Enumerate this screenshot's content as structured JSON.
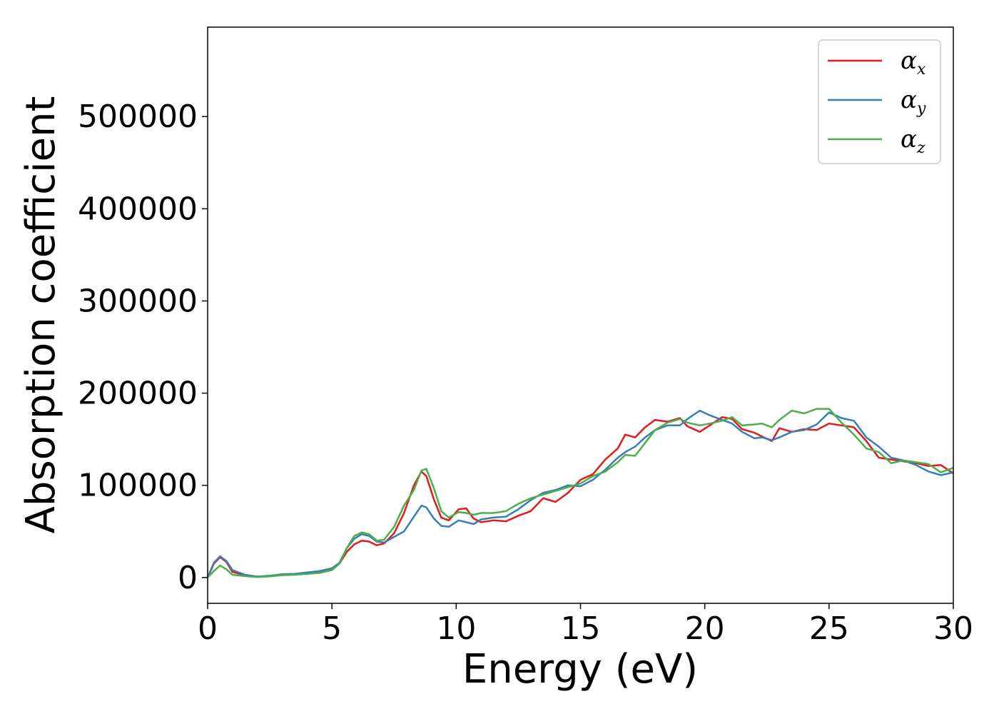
{
  "chart_data": {
    "type": "line",
    "title": "",
    "xlabel": "Energy (eV)",
    "ylabel": "Absorption coefficient",
    "xlim": [
      0,
      30
    ],
    "ylim": [
      -28000,
      597000
    ],
    "xticks": [
      0,
      5,
      10,
      15,
      20,
      25,
      30
    ],
    "yticks": [
      0,
      100000,
      200000,
      300000,
      400000,
      500000
    ],
    "grid": false,
    "legend_position": "top-right",
    "series": [
      {
        "name_symbol": "α",
        "name_sub": "x",
        "color": "#e41a1c",
        "points": [
          [
            0,
            0
          ],
          [
            0.25,
            15000
          ],
          [
            0.5,
            22000
          ],
          [
            0.75,
            17000
          ],
          [
            1,
            6000
          ],
          [
            1.5,
            2500
          ],
          [
            2,
            800
          ],
          [
            2.5,
            1500
          ],
          [
            3,
            3000
          ],
          [
            3.5,
            3500
          ],
          [
            4,
            5000
          ],
          [
            4.5,
            6500
          ],
          [
            5,
            10000
          ],
          [
            5.3,
            15000
          ],
          [
            5.6,
            28000
          ],
          [
            5.9,
            36000
          ],
          [
            6.2,
            40000
          ],
          [
            6.5,
            39000
          ],
          [
            6.8,
            35000
          ],
          [
            7.1,
            37000
          ],
          [
            7.5,
            48000
          ],
          [
            7.9,
            70000
          ],
          [
            8.3,
            100000
          ],
          [
            8.6,
            115000
          ],
          [
            8.8,
            110000
          ],
          [
            9.1,
            85000
          ],
          [
            9.4,
            65000
          ],
          [
            9.7,
            62000
          ],
          [
            10.1,
            74000
          ],
          [
            10.4,
            75000
          ],
          [
            10.7,
            64000
          ],
          [
            11,
            60000
          ],
          [
            11.5,
            62000
          ],
          [
            12,
            61000
          ],
          [
            12.5,
            67000
          ],
          [
            13,
            72000
          ],
          [
            13.5,
            86000
          ],
          [
            14,
            82000
          ],
          [
            14.5,
            92000
          ],
          [
            15,
            106000
          ],
          [
            15.5,
            112000
          ],
          [
            16,
            128000
          ],
          [
            16.5,
            140000
          ],
          [
            16.8,
            155000
          ],
          [
            17.2,
            152000
          ],
          [
            17.6,
            163000
          ],
          [
            18,
            171000
          ],
          [
            18.5,
            169000
          ],
          [
            19,
            173000
          ],
          [
            19.3,
            164000
          ],
          [
            19.8,
            158000
          ],
          [
            20.2,
            165000
          ],
          [
            20.7,
            174000
          ],
          [
            21.1,
            172000
          ],
          [
            21.5,
            161000
          ],
          [
            22,
            157000
          ],
          [
            22.3,
            153000
          ],
          [
            22.7,
            148000
          ],
          [
            23,
            162000
          ],
          [
            23.5,
            158000
          ],
          [
            24,
            161000
          ],
          [
            24.5,
            160000
          ],
          [
            25,
            167000
          ],
          [
            25.5,
            165000
          ],
          [
            26,
            163000
          ],
          [
            26.5,
            148000
          ],
          [
            27,
            130000
          ],
          [
            27.5,
            128000
          ],
          [
            28,
            126000
          ],
          [
            28.5,
            124000
          ],
          [
            29,
            121000
          ],
          [
            29.5,
            122000
          ],
          [
            30,
            113000
          ]
        ]
      },
      {
        "name_symbol": "α",
        "name_sub": "y",
        "color": "#377eb8",
        "points": [
          [
            0,
            0
          ],
          [
            0.25,
            16000
          ],
          [
            0.5,
            23000
          ],
          [
            0.75,
            18000
          ],
          [
            1,
            8000
          ],
          [
            1.5,
            3000
          ],
          [
            2,
            1000
          ],
          [
            2.5,
            2000
          ],
          [
            3,
            3500
          ],
          [
            3.5,
            4000
          ],
          [
            4,
            5500
          ],
          [
            4.5,
            7000
          ],
          [
            5,
            10000
          ],
          [
            5.3,
            16000
          ],
          [
            5.6,
            32000
          ],
          [
            5.9,
            42000
          ],
          [
            6.2,
            47000
          ],
          [
            6.5,
            45000
          ],
          [
            6.8,
            39000
          ],
          [
            7.1,
            38000
          ],
          [
            7.5,
            44000
          ],
          [
            7.9,
            50000
          ],
          [
            8.3,
            66000
          ],
          [
            8.6,
            78000
          ],
          [
            8.8,
            76000
          ],
          [
            9.1,
            64000
          ],
          [
            9.4,
            56000
          ],
          [
            9.7,
            55000
          ],
          [
            10.1,
            62000
          ],
          [
            10.4,
            60000
          ],
          [
            10.7,
            58000
          ],
          [
            11,
            63000
          ],
          [
            11.5,
            65000
          ],
          [
            12,
            66000
          ],
          [
            12.5,
            74000
          ],
          [
            13,
            84000
          ],
          [
            13.5,
            92000
          ],
          [
            14,
            95000
          ],
          [
            14.5,
            100000
          ],
          [
            15,
            99000
          ],
          [
            15.5,
            106000
          ],
          [
            16,
            117000
          ],
          [
            16.5,
            130000
          ],
          [
            16.8,
            136000
          ],
          [
            17.2,
            142000
          ],
          [
            17.6,
            152000
          ],
          [
            18,
            160000
          ],
          [
            18.5,
            165000
          ],
          [
            19,
            165000
          ],
          [
            19.3,
            172000
          ],
          [
            19.8,
            181000
          ],
          [
            20.2,
            176000
          ],
          [
            20.7,
            171000
          ],
          [
            21.1,
            167000
          ],
          [
            21.5,
            158000
          ],
          [
            22,
            151000
          ],
          [
            22.3,
            152000
          ],
          [
            22.7,
            149000
          ],
          [
            23,
            152000
          ],
          [
            23.5,
            158000
          ],
          [
            24,
            160000
          ],
          [
            24.5,
            166000
          ],
          [
            25,
            179000
          ],
          [
            25.5,
            173000
          ],
          [
            26,
            170000
          ],
          [
            26.5,
            152000
          ],
          [
            27,
            142000
          ],
          [
            27.5,
            130000
          ],
          [
            28,
            127000
          ],
          [
            28.5,
            122000
          ],
          [
            29,
            115000
          ],
          [
            29.5,
            111000
          ],
          [
            30,
            114000
          ]
        ]
      },
      {
        "name_symbol": "α",
        "name_sub": "z",
        "color": "#4daf4a",
        "points": [
          [
            0,
            0
          ],
          [
            0.25,
            7000
          ],
          [
            0.5,
            13000
          ],
          [
            0.75,
            9000
          ],
          [
            1,
            3000
          ],
          [
            1.5,
            1500
          ],
          [
            2,
            500
          ],
          [
            2.5,
            1200
          ],
          [
            3,
            2500
          ],
          [
            3.5,
            3000
          ],
          [
            4,
            4000
          ],
          [
            4.5,
            5000
          ],
          [
            5,
            8000
          ],
          [
            5.3,
            15000
          ],
          [
            5.6,
            32000
          ],
          [
            5.9,
            45000
          ],
          [
            6.2,
            49000
          ],
          [
            6.5,
            47000
          ],
          [
            6.8,
            40000
          ],
          [
            7.1,
            41000
          ],
          [
            7.5,
            55000
          ],
          [
            7.9,
            78000
          ],
          [
            8.3,
            95000
          ],
          [
            8.6,
            116000
          ],
          [
            8.8,
            118000
          ],
          [
            9.1,
            97000
          ],
          [
            9.4,
            72000
          ],
          [
            9.7,
            65000
          ],
          [
            10.1,
            71000
          ],
          [
            10.4,
            70000
          ],
          [
            10.7,
            68000
          ],
          [
            11,
            70000
          ],
          [
            11.5,
            70000
          ],
          [
            12,
            72000
          ],
          [
            12.5,
            80000
          ],
          [
            13,
            86000
          ],
          [
            13.5,
            90000
          ],
          [
            14,
            94000
          ],
          [
            14.5,
            98000
          ],
          [
            15,
            102000
          ],
          [
            15.5,
            110000
          ],
          [
            16,
            115000
          ],
          [
            16.5,
            125000
          ],
          [
            16.8,
            133000
          ],
          [
            17.2,
            132000
          ],
          [
            17.6,
            146000
          ],
          [
            18,
            160000
          ],
          [
            18.5,
            168000
          ],
          [
            19,
            172000
          ],
          [
            19.3,
            168000
          ],
          [
            19.8,
            165000
          ],
          [
            20.2,
            167000
          ],
          [
            20.7,
            170000
          ],
          [
            21.1,
            174000
          ],
          [
            21.5,
            165000
          ],
          [
            22,
            166000
          ],
          [
            22.3,
            167000
          ],
          [
            22.7,
            163000
          ],
          [
            23,
            171000
          ],
          [
            23.5,
            181000
          ],
          [
            24,
            178000
          ],
          [
            24.5,
            183000
          ],
          [
            25,
            183000
          ],
          [
            25.5,
            168000
          ],
          [
            26,
            155000
          ],
          [
            26.5,
            140000
          ],
          [
            27,
            136000
          ],
          [
            27.5,
            124000
          ],
          [
            28,
            127000
          ],
          [
            28.5,
            125000
          ],
          [
            29,
            123000
          ],
          [
            29.5,
            114000
          ],
          [
            30,
            119000
          ]
        ]
      }
    ]
  }
}
